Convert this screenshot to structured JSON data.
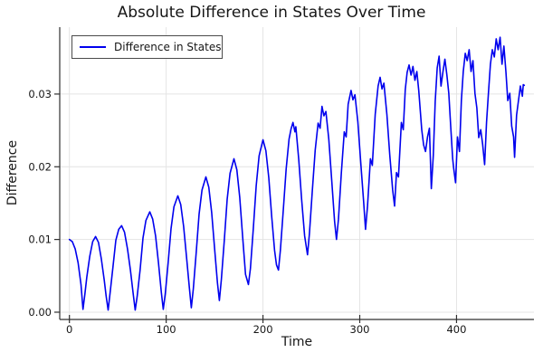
{
  "title": "Absolute Difference in States Over Time",
  "colors": {
    "line": "#0000ee",
    "grid": "#e4e4e4",
    "axis": "#2f2f2f",
    "text": "#161616",
    "background": "#ffffff",
    "legend_border": "#4a4a4a"
  },
  "chart_data": {
    "type": "line",
    "title": "Absolute Difference in States Over Time",
    "xlabel": "Time",
    "ylabel": "Difference",
    "legend": [
      "Difference in States"
    ],
    "legend_position": "top-left",
    "grid": true,
    "xlim": [
      -10,
      480
    ],
    "ylim": [
      -0.001,
      0.0392
    ],
    "xticks": [
      0,
      100,
      200,
      300,
      400
    ],
    "xtick_labels": [
      "0",
      "100",
      "200",
      "300",
      "400"
    ],
    "yticks": [
      0,
      0.01,
      0.02,
      0.03
    ],
    "ytick_labels": [
      "0.00",
      "0.01",
      "0.02",
      "0.03"
    ],
    "series": [
      {
        "name": "Difference in States",
        "color": "#0000ee",
        "points": [
          [
            0,
            0.01
          ],
          [
            3,
            0.0097
          ],
          [
            6,
            0.0087
          ],
          [
            9,
            0.0068
          ],
          [
            12,
            0.0038
          ],
          [
            14,
            0.0004
          ],
          [
            16,
            0.0025
          ],
          [
            18,
            0.0048
          ],
          [
            21,
            0.0077
          ],
          [
            24,
            0.0097
          ],
          [
            27,
            0.0104
          ],
          [
            30,
            0.0096
          ],
          [
            33,
            0.0073
          ],
          [
            36,
            0.0044
          ],
          [
            38,
            0.0022
          ],
          [
            40,
            0.0003
          ],
          [
            42,
            0.0026
          ],
          [
            45,
            0.0062
          ],
          [
            48,
            0.0099
          ],
          [
            51,
            0.0114
          ],
          [
            54,
            0.0119
          ],
          [
            57,
            0.011
          ],
          [
            60,
            0.0087
          ],
          [
            63,
            0.0058
          ],
          [
            66,
            0.0024
          ],
          [
            68,
            0.0003
          ],
          [
            70,
            0.0022
          ],
          [
            73,
            0.0058
          ],
          [
            76,
            0.0102
          ],
          [
            79,
            0.0126
          ],
          [
            83,
            0.0138
          ],
          [
            86,
            0.0128
          ],
          [
            89,
            0.0105
          ],
          [
            92,
            0.0068
          ],
          [
            95,
            0.0027
          ],
          [
            97,
            0.0004
          ],
          [
            99,
            0.0025
          ],
          [
            102,
            0.0068
          ],
          [
            105,
            0.0115
          ],
          [
            108,
            0.0145
          ],
          [
            112,
            0.016
          ],
          [
            115,
            0.0148
          ],
          [
            118,
            0.0118
          ],
          [
            121,
            0.0076
          ],
          [
            124,
            0.0033
          ],
          [
            126,
            0.0006
          ],
          [
            128,
            0.0032
          ],
          [
            131,
            0.0082
          ],
          [
            134,
            0.0135
          ],
          [
            137,
            0.0168
          ],
          [
            141,
            0.0186
          ],
          [
            144,
            0.0172
          ],
          [
            147,
            0.0137
          ],
          [
            150,
            0.0088
          ],
          [
            153,
            0.004
          ],
          [
            155,
            0.0016
          ],
          [
            157,
            0.0045
          ],
          [
            160,
            0.0098
          ],
          [
            163,
            0.0155
          ],
          [
            166,
            0.0191
          ],
          [
            170,
            0.0211
          ],
          [
            173,
            0.0196
          ],
          [
            176,
            0.0158
          ],
          [
            179,
            0.0104
          ],
          [
            182,
            0.0052
          ],
          [
            185,
            0.0038
          ],
          [
            187,
            0.006
          ],
          [
            190,
            0.0115
          ],
          [
            193,
            0.0174
          ],
          [
            196,
            0.0215
          ],
          [
            200,
            0.0237
          ],
          [
            203,
            0.0222
          ],
          [
            206,
            0.0185
          ],
          [
            209,
            0.0132
          ],
          [
            212,
            0.0085
          ],
          [
            214,
            0.0065
          ],
          [
            216,
            0.0058
          ],
          [
            218,
            0.0085
          ],
          [
            221,
            0.014
          ],
          [
            224,
            0.0197
          ],
          [
            227,
            0.0238
          ],
          [
            229,
            0.0252
          ],
          [
            231,
            0.0261
          ],
          [
            233,
            0.0248
          ],
          [
            234,
            0.0255
          ],
          [
            237,
            0.021
          ],
          [
            240,
            0.0155
          ],
          [
            243,
            0.0105
          ],
          [
            246,
            0.0079
          ],
          [
            248,
            0.0108
          ],
          [
            251,
            0.0167
          ],
          [
            254,
            0.0223
          ],
          [
            257,
            0.026
          ],
          [
            259,
            0.0253
          ],
          [
            261,
            0.0283
          ],
          [
            263,
            0.027
          ],
          [
            265,
            0.0276
          ],
          [
            268,
            0.0238
          ],
          [
            271,
            0.0182
          ],
          [
            274,
            0.0125
          ],
          [
            276,
            0.01
          ],
          [
            278,
            0.0128
          ],
          [
            281,
            0.0192
          ],
          [
            284,
            0.0248
          ],
          [
            286,
            0.0241
          ],
          [
            288,
            0.0286
          ],
          [
            291,
            0.0305
          ],
          [
            293,
            0.0292
          ],
          [
            295,
            0.0299
          ],
          [
            298,
            0.0262
          ],
          [
            301,
            0.0206
          ],
          [
            304,
            0.0152
          ],
          [
            306,
            0.0114
          ],
          [
            308,
            0.0146
          ],
          [
            311,
            0.0211
          ],
          [
            313,
            0.0202
          ],
          [
            316,
            0.0272
          ],
          [
            319,
            0.0311
          ],
          [
            321,
            0.0323
          ],
          [
            323,
            0.0307
          ],
          [
            325,
            0.0315
          ],
          [
            328,
            0.0272
          ],
          [
            331,
            0.0216
          ],
          [
            334,
            0.0168
          ],
          [
            336,
            0.0146
          ],
          [
            338,
            0.0192
          ],
          [
            340,
            0.0186
          ],
          [
            343,
            0.0261
          ],
          [
            345,
            0.0251
          ],
          [
            347,
            0.0306
          ],
          [
            349,
            0.033
          ],
          [
            351,
            0.034
          ],
          [
            353,
            0.0326
          ],
          [
            355,
            0.0338
          ],
          [
            357,
            0.0319
          ],
          [
            359,
            0.0331
          ],
          [
            361,
            0.0305
          ],
          [
            364,
            0.0251
          ],
          [
            366,
            0.023
          ],
          [
            368,
            0.0221
          ],
          [
            370,
            0.0241
          ],
          [
            372,
            0.0253
          ],
          [
            374,
            0.017
          ],
          [
            376,
            0.0216
          ],
          [
            378,
            0.029
          ],
          [
            380,
            0.0336
          ],
          [
            382,
            0.0352
          ],
          [
            384,
            0.0311
          ],
          [
            386,
            0.0331
          ],
          [
            388,
            0.0348
          ],
          [
            390,
            0.0326
          ],
          [
            392,
            0.0301
          ],
          [
            394,
            0.0256
          ],
          [
            396,
            0.0211
          ],
          [
            397,
            0.0199
          ],
          [
            399,
            0.0178
          ],
          [
            401,
            0.0241
          ],
          [
            403,
            0.0221
          ],
          [
            405,
            0.0291
          ],
          [
            407,
            0.0331
          ],
          [
            409,
            0.0356
          ],
          [
            411,
            0.0346
          ],
          [
            413,
            0.0361
          ],
          [
            415,
            0.0331
          ],
          [
            417,
            0.0346
          ],
          [
            419,
            0.0301
          ],
          [
            421,
            0.0281
          ],
          [
            423,
            0.024
          ],
          [
            425,
            0.0251
          ],
          [
            427,
            0.0231
          ],
          [
            429,
            0.0203
          ],
          [
            431,
            0.0261
          ],
          [
            433,
            0.0301
          ],
          [
            435,
            0.0341
          ],
          [
            437,
            0.0361
          ],
          [
            439,
            0.0351
          ],
          [
            441,
            0.0376
          ],
          [
            443,
            0.0361
          ],
          [
            445,
            0.0378
          ],
          [
            447,
            0.0341
          ],
          [
            449,
            0.0366
          ],
          [
            451,
            0.0331
          ],
          [
            453,
            0.0291
          ],
          [
            455,
            0.0301
          ],
          [
            457,
            0.0256
          ],
          [
            459,
            0.0241
          ],
          [
            460,
            0.0213
          ],
          [
            462,
            0.0271
          ],
          [
            464,
            0.0291
          ],
          [
            466,
            0.0311
          ],
          [
            468,
            0.0297
          ],
          [
            469,
            0.0313
          ],
          [
            470,
            0.0312
          ]
        ]
      }
    ]
  }
}
